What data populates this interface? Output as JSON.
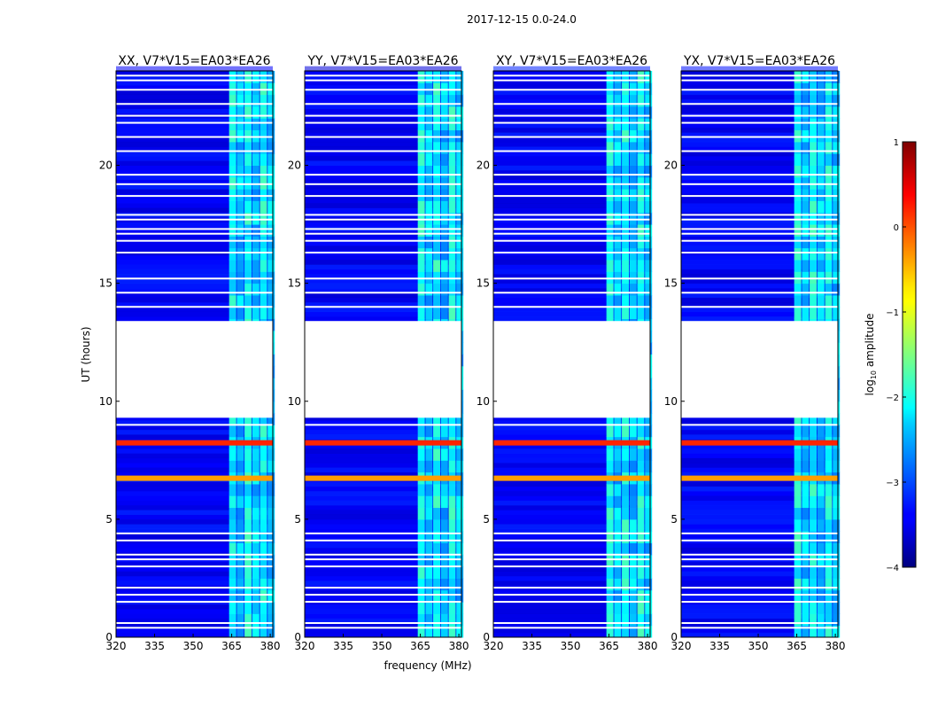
{
  "suptitle": "2017-12-15 0.0-24.0",
  "chart_data": {
    "type": "heatmap",
    "xlabel": "frequency (MHz)",
    "ylabel": "UT (hours)",
    "xlim": [
      320,
      381
    ],
    "ylim": [
      0,
      24
    ],
    "xticks": [
      320,
      335,
      350,
      365,
      380
    ],
    "yticks": [
      0,
      5,
      10,
      15,
      20
    ],
    "panels": [
      {
        "title": "XX, V7*V15=EA03*EA26",
        "id": "XX"
      },
      {
        "title": "YY, V7*V15=EA03*EA26",
        "id": "YY"
      },
      {
        "title": "XY, V7*V15=EA03*EA26",
        "id": "XY"
      },
      {
        "title": "YX, V7*V15=EA03*EA26",
        "id": "YX"
      }
    ],
    "colorbar": {
      "label": "log10 amplitude",
      "label_main": "log",
      "label_sub": "10",
      "label_rest": " amplitude",
      "min": -4,
      "max": 1,
      "ticks": [
        -4,
        -3,
        -2,
        -1,
        0,
        1
      ],
      "colormap": "jet"
    },
    "data_gap_hours": [
      9.3,
      13.4
    ],
    "blank_rows_hours": [
      0.4,
      0.6,
      1.5,
      1.8,
      2.1,
      3.0,
      3.3,
      3.5,
      4.1,
      4.4,
      9.0,
      14.0,
      14.6,
      15.2,
      16.3,
      16.8,
      17.1,
      17.3,
      17.7,
      17.9,
      18.7,
      19.2,
      19.6,
      20.6,
      21.2,
      21.8,
      22.1,
      22.6,
      23.2,
      23.6,
      23.8
    ],
    "rfi_channels_mhz": [
      364,
      370,
      376
    ],
    "strong_rows_hours": [
      {
        "ut": 8.2,
        "value": 0.2
      },
      {
        "ut": 6.7,
        "value": -0.4
      }
    ]
  },
  "colors": {
    "low": "#00007f",
    "mid": "#00ffff",
    "high": "#7f0000",
    "background": "#ffffff"
  }
}
